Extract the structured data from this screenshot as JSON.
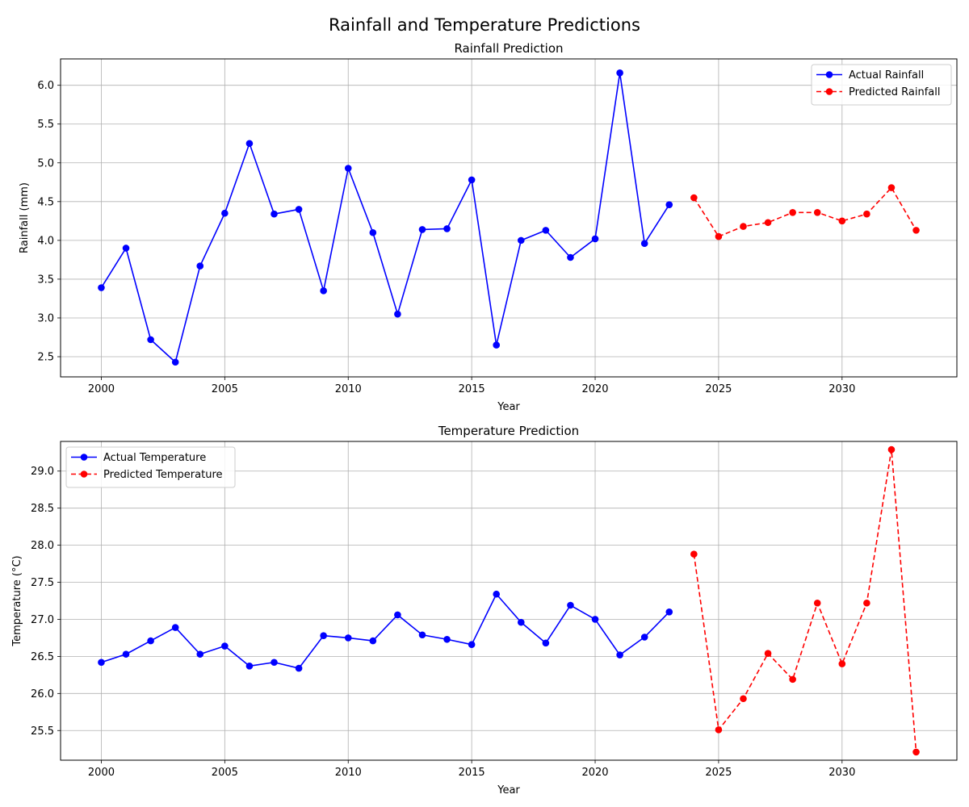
{
  "figure": {
    "title": "Rainfall and Temperature Predictions"
  },
  "chart_data": [
    {
      "type": "line",
      "title": "Rainfall Prediction",
      "xlabel": "Year",
      "ylabel": "Rainfall (mm)",
      "xlim": [
        1998.35,
        2034.65
      ],
      "ylim": [
        2.24,
        6.34
      ],
      "xticks": [
        2000,
        2005,
        2010,
        2015,
        2020,
        2025,
        2030
      ],
      "yticks": [
        2.5,
        3.0,
        3.5,
        4.0,
        4.5,
        5.0,
        5.5,
        6.0
      ],
      "ytick_format": 1,
      "grid": true,
      "legend": "top-right",
      "series": [
        {
          "name": "Actual Rainfall",
          "color": "#0000ff",
          "dashed": false,
          "x": [
            2000,
            2001,
            2002,
            2003,
            2004,
            2005,
            2006,
            2007,
            2008,
            2009,
            2010,
            2011,
            2012,
            2013,
            2014,
            2015,
            2016,
            2017,
            2018,
            2019,
            2020,
            2021,
            2022,
            2023
          ],
          "y": [
            3.39,
            3.9,
            2.72,
            2.43,
            3.67,
            4.35,
            5.25,
            4.34,
            4.4,
            3.35,
            4.93,
            4.1,
            3.05,
            4.14,
            4.15,
            4.78,
            2.65,
            4.0,
            4.13,
            3.78,
            4.02,
            6.16,
            3.96,
            4.46
          ]
        },
        {
          "name": "Predicted Rainfall",
          "color": "#ff0000",
          "dashed": true,
          "x": [
            2024,
            2025,
            2026,
            2027,
            2028,
            2029,
            2030,
            2031,
            2032,
            2033
          ],
          "y": [
            4.55,
            4.05,
            4.18,
            4.23,
            4.36,
            4.36,
            4.25,
            4.34,
            4.68,
            4.13
          ]
        }
      ]
    },
    {
      "type": "line",
      "title": "Temperature Prediction",
      "xlabel": "Year",
      "ylabel": "Temperature (°C)",
      "xlim": [
        1998.35,
        2034.65
      ],
      "ylim": [
        25.1,
        29.4
      ],
      "xticks": [
        2000,
        2005,
        2010,
        2015,
        2020,
        2025,
        2030
      ],
      "yticks": [
        25.5,
        26.0,
        26.5,
        27.0,
        27.5,
        28.0,
        28.5,
        29.0
      ],
      "ytick_format": 1,
      "grid": true,
      "legend": "top-left",
      "series": [
        {
          "name": "Actual Temperature",
          "color": "#0000ff",
          "dashed": false,
          "x": [
            2000,
            2001,
            2002,
            2003,
            2004,
            2005,
            2006,
            2007,
            2008,
            2009,
            2010,
            2011,
            2012,
            2013,
            2014,
            2015,
            2016,
            2017,
            2018,
            2019,
            2020,
            2021,
            2022,
            2023
          ],
          "y": [
            26.42,
            26.53,
            26.71,
            26.89,
            26.53,
            26.64,
            26.37,
            26.42,
            26.34,
            26.78,
            26.75,
            26.71,
            27.06,
            26.79,
            26.73,
            26.66,
            27.34,
            26.96,
            26.68,
            27.19,
            27.0,
            26.52,
            26.76,
            27.1
          ]
        },
        {
          "name": "Predicted Temperature",
          "color": "#ff0000",
          "dashed": true,
          "x": [
            2024,
            2025,
            2026,
            2027,
            2028,
            2029,
            2030,
            2031,
            2032,
            2033
          ],
          "y": [
            27.88,
            25.51,
            25.93,
            26.54,
            26.19,
            27.22,
            26.4,
            27.22,
            29.29,
            25.21
          ]
        }
      ]
    }
  ]
}
